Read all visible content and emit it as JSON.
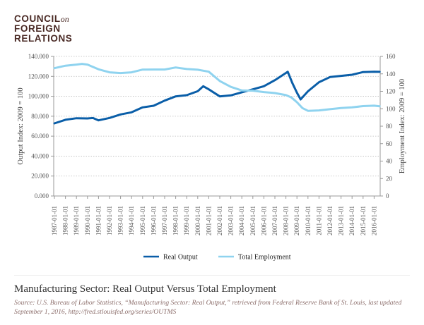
{
  "logo": {
    "line1": "COUNCIL",
    "on": "on",
    "line2": "FOREIGN",
    "line3": "RELATIONS"
  },
  "chart_data": {
    "type": "line",
    "title": "Manufacturing Sector: Real Output Versus Total Employment",
    "ylabel_left": "Output Index: 2009 = 100",
    "ylabel_right": "Employment Index: 2009 = 100",
    "ylim_left": [
      0,
      140000
    ],
    "ylim_right": [
      0,
      160
    ],
    "yticks_left": [
      "0.000",
      "20.000",
      "40.000",
      "60.000",
      "80.000",
      "100.000",
      "120.000",
      "140.000"
    ],
    "yticks_right": [
      "0",
      "20",
      "40",
      "60",
      "80",
      "100",
      "120",
      "140",
      "160"
    ],
    "xticks": [
      "1987-01-01",
      "1988-01-01",
      "1989-01-01",
      "1990-01-01",
      "1991-01-01",
      "1992-01-01",
      "1993-01-01",
      "1994-01-01",
      "1995-01-01",
      "1996-01-01",
      "1997-01-01",
      "1998-01-01",
      "1999-01-01",
      "2000-01-01",
      "2001-01-01",
      "2002-01-01",
      "2003-01-01",
      "2004-01-01",
      "2005-01-01",
      "2006-01-01",
      "2007-01-01",
      "2008-01-01",
      "2009-01-01",
      "2010-01-01",
      "2011-01-01",
      "2012-01-01",
      "2013-01-01",
      "2014-01-01",
      "2015-01-01",
      "2016-01-01"
    ],
    "grid": true,
    "legend_position": "bottom",
    "series": [
      {
        "name": "Real Output",
        "axis": "left",
        "color": "#0a5ea8",
        "points": [
          [
            "1987-01-01",
            72800
          ],
          [
            "1988-01-01",
            76400
          ],
          [
            "1989-01-01",
            78000
          ],
          [
            "1990-01-01",
            77800
          ],
          [
            "1990-07-01",
            78200
          ],
          [
            "1991-01-01",
            75900
          ],
          [
            "1992-01-01",
            78300
          ],
          [
            "1993-01-01",
            81800
          ],
          [
            "1994-01-01",
            83900
          ],
          [
            "1995-01-01",
            88900
          ],
          [
            "1996-01-01",
            90500
          ],
          [
            "1997-01-01",
            95700
          ],
          [
            "1998-01-01",
            99900
          ],
          [
            "1999-01-01",
            101100
          ],
          [
            "2000-01-01",
            105100
          ],
          [
            "2000-07-01",
            110100
          ],
          [
            "2001-01-01",
            107000
          ],
          [
            "2002-01-01",
            99900
          ],
          [
            "2003-01-01",
            100900
          ],
          [
            "2004-01-01",
            104000
          ],
          [
            "2005-01-01",
            107000
          ],
          [
            "2006-01-01",
            110100
          ],
          [
            "2007-01-01",
            116200
          ],
          [
            "2008-01-01",
            123400
          ],
          [
            "2008-03-01",
            124600
          ],
          [
            "2008-08-01",
            113300
          ],
          [
            "2009-01-01",
            103600
          ],
          [
            "2009-05-01",
            96900
          ],
          [
            "2010-01-01",
            105000
          ],
          [
            "2011-01-01",
            114100
          ],
          [
            "2012-01-01",
            119300
          ],
          [
            "2013-01-01",
            120500
          ],
          [
            "2014-01-01",
            121600
          ],
          [
            "2015-01-01",
            124300
          ],
          [
            "2016-01-01",
            124600
          ],
          [
            "2016-07-01",
            124500
          ]
        ]
      },
      {
        "name": "Total Employment",
        "axis": "right",
        "color": "#8fd3ef",
        "points": [
          [
            "1987-01-01",
            146.5
          ],
          [
            "1988-01-01",
            149.3
          ],
          [
            "1989-01-01",
            150.6
          ],
          [
            "1989-07-01",
            151.4
          ],
          [
            "1990-01-01",
            150.6
          ],
          [
            "1991-01-01",
            145.2
          ],
          [
            "1992-01-01",
            141.7
          ],
          [
            "1993-01-01",
            140.9
          ],
          [
            "1994-01-01",
            141.7
          ],
          [
            "1995-01-01",
            144.9
          ],
          [
            "1996-01-01",
            145.0
          ],
          [
            "1997-01-01",
            145.0
          ],
          [
            "1998-01-01",
            147.3
          ],
          [
            "1999-01-01",
            145.5
          ],
          [
            "2000-01-01",
            144.7
          ],
          [
            "2001-01-01",
            142.5
          ],
          [
            "2002-01-01",
            131.8
          ],
          [
            "2003-01-01",
            125.1
          ],
          [
            "2004-01-01",
            121.0
          ],
          [
            "2005-01-01",
            120.7
          ],
          [
            "2006-01-01",
            119.1
          ],
          [
            "2007-01-01",
            118.0
          ],
          [
            "2008-01-01",
            115.6
          ],
          [
            "2008-07-01",
            112.9
          ],
          [
            "2009-01-01",
            107.5
          ],
          [
            "2009-07-01",
            100.8
          ],
          [
            "2010-01-01",
            97.6
          ],
          [
            "2011-01-01",
            98.1
          ],
          [
            "2012-01-01",
            99.5
          ],
          [
            "2013-01-01",
            100.8
          ],
          [
            "2014-01-01",
            101.6
          ],
          [
            "2015-01-01",
            103.0
          ],
          [
            "2016-01-01",
            103.5
          ],
          [
            "2016-07-01",
            102.9
          ]
        ]
      }
    ]
  },
  "source": "Source: U.S. Bureau of Labor Statistics, “Manufacturing Sector: Real Output,” retrieved from Federal Reserve Bank of St. Louis, last updated September 1, 2016, http://fred.stlouisfed.org/series/OUTMS"
}
